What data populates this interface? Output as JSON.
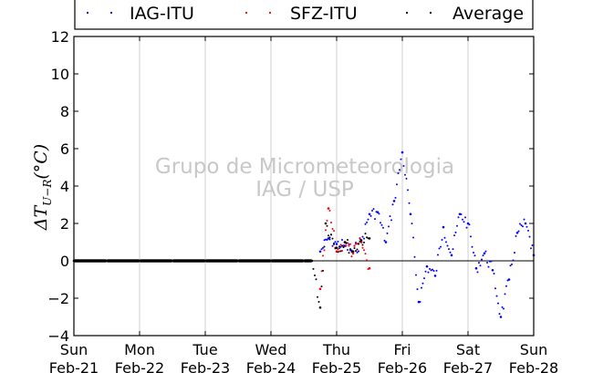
{
  "chart_data": {
    "type": "scatter",
    "ylabel": "ΔT_{U−R}(°C)",
    "ylabel_main": "ΔT",
    "ylabel_sub": "U−R",
    "ylabel_unit": "(°C)",
    "xlabel": "",
    "ylim": [
      -4,
      12
    ],
    "yticks": [
      -4,
      -2,
      0,
      2,
      4,
      6,
      8,
      10,
      12
    ],
    "ytick_labels": [
      "−4",
      "−2",
      "0",
      "2",
      "4",
      "6",
      "8",
      "10",
      "12"
    ],
    "xlim": [
      "2016-02-21T00:00",
      "2016-02-28T00:00"
    ],
    "xticks": [
      {
        "day": "Sun",
        "date": "Feb-21"
      },
      {
        "day": "Mon",
        "date": "Feb-22"
      },
      {
        "day": "Tue",
        "date": "Feb-23"
      },
      {
        "day": "Wed",
        "date": "Feb-24"
      },
      {
        "day": "Thu",
        "date": "Feb-25"
      },
      {
        "day": "Fri",
        "date": "Feb-26"
      },
      {
        "day": "Sat",
        "date": "Feb-27"
      },
      {
        "day": "Sun",
        "date": "Feb-28"
      }
    ],
    "grid": "vertical",
    "legend_position": "top",
    "watermark": [
      "Grupo de Micrometeorologia",
      "IAG / USP"
    ],
    "series": [
      {
        "name": "IAG-ITU",
        "color": "#0000ff",
        "points": [
          [
            "2016-02-24T18:00",
            0.5
          ],
          [
            "2016-02-24T21:00",
            1.2
          ],
          [
            "2016-02-25T00:00",
            0.9
          ],
          [
            "2016-02-25T03:00",
            0.8
          ],
          [
            "2016-02-25T06:00",
            0.5
          ],
          [
            "2016-02-25T09:00",
            1.0
          ],
          [
            "2016-02-25T12:00",
            2.5
          ],
          [
            "2016-02-25T15:00",
            2.6
          ],
          [
            "2016-02-25T18:00",
            1.0
          ],
          [
            "2016-02-25T21:00",
            3.2
          ],
          [
            "2016-02-26T00:00",
            5.8
          ],
          [
            "2016-02-26T03:00",
            2.5
          ],
          [
            "2016-02-26T06:00",
            -2.2
          ],
          [
            "2016-02-26T09:00",
            -0.3
          ],
          [
            "2016-02-26T12:00",
            -0.8
          ],
          [
            "2016-02-26T15:00",
            1.8
          ],
          [
            "2016-02-26T18:00",
            0.3
          ],
          [
            "2016-02-26T21:00",
            2.5
          ],
          [
            "2016-02-27T00:00",
            2.0
          ],
          [
            "2016-02-27T03:00",
            -0.4
          ],
          [
            "2016-02-27T06:00",
            0.4
          ],
          [
            "2016-02-27T09:00",
            -0.5
          ],
          [
            "2016-02-27T12:00",
            -3.0
          ],
          [
            "2016-02-27T15:00",
            -1.0
          ],
          [
            "2016-02-27T18:00",
            1.5
          ],
          [
            "2016-02-27T21:00",
            2.0
          ],
          [
            "2016-02-28T00:00",
            0.3
          ]
        ]
      },
      {
        "name": "SFZ-ITU",
        "color": "#ff0000",
        "points": [
          [
            "2016-02-24T18:00",
            -1.5
          ],
          [
            "2016-02-24T21:00",
            2.8
          ],
          [
            "2016-02-25T00:00",
            0.5
          ],
          [
            "2016-02-25T03:00",
            1.0
          ],
          [
            "2016-02-25T06:00",
            0.4
          ],
          [
            "2016-02-25T09:00",
            1.0
          ],
          [
            "2016-02-25T12:00",
            -0.4
          ]
        ]
      },
      {
        "name": "Average",
        "color": "#000000",
        "points": [
          [
            "2016-02-21T00:00",
            0
          ],
          [
            "2016-02-21T12:00",
            0
          ],
          [
            "2016-02-22T00:00",
            0
          ],
          [
            "2016-02-22T12:00",
            0
          ],
          [
            "2016-02-23T00:00",
            0
          ],
          [
            "2016-02-23T12:00",
            0
          ],
          [
            "2016-02-24T00:00",
            0
          ],
          [
            "2016-02-24T12:00",
            0
          ],
          [
            "2016-02-24T15:00",
            0
          ],
          [
            "2016-02-24T18:00",
            -2.5
          ],
          [
            "2016-02-24T20:00",
            2.0
          ],
          [
            "2016-02-25T00:00",
            0.7
          ],
          [
            "2016-02-25T03:00",
            1.0
          ],
          [
            "2016-02-25T06:00",
            0.5
          ],
          [
            "2016-02-25T09:00",
            1.1
          ],
          [
            "2016-02-25T12:00",
            1.2
          ]
        ]
      }
    ]
  }
}
